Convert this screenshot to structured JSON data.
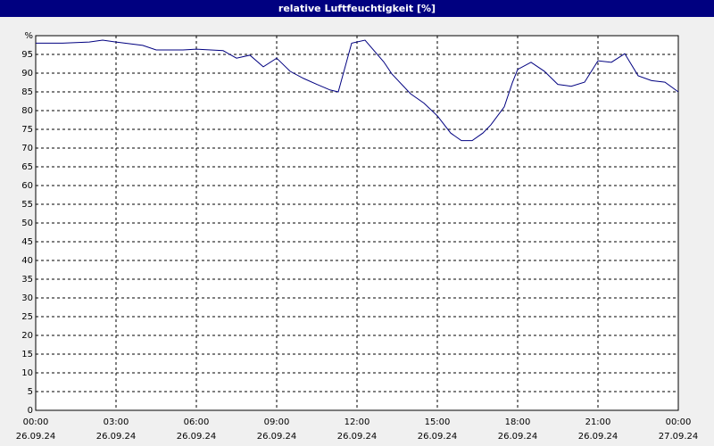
{
  "chart_data": {
    "type": "line",
    "title": "relative Luftfeuchtigkeit [%]",
    "x": [
      0,
      1,
      2,
      2.5,
      3,
      4,
      4.5,
      5,
      5.5,
      6,
      7,
      7.5,
      8,
      8.5,
      9,
      9.5,
      10,
      10.5,
      11,
      11.3,
      11.8,
      12.3,
      13,
      13.3,
      14,
      14.5,
      15,
      15.5,
      15.9,
      16.3,
      16.7,
      17,
      17.5,
      17.8,
      18,
      18.5,
      19,
      19.5,
      20,
      20.5,
      21,
      21.5,
      22,
      22.5,
      23,
      23.5,
      24
    ],
    "series": [
      {
        "name": "relative Luftfeuchtigkeit",
        "color": "#000080",
        "values": [
          98,
          98,
          98.3,
          98.8,
          98.3,
          97.4,
          96.2,
          96.2,
          96.2,
          96.4,
          96,
          94,
          94.8,
          91.7,
          94,
          90.5,
          88.6,
          87,
          85.5,
          85,
          98,
          98.8,
          93,
          89.8,
          84.5,
          82,
          78.6,
          74,
          72,
          72,
          74,
          76.2,
          81,
          87.4,
          91,
          92.9,
          90.5,
          87,
          86.5,
          87.6,
          93.3,
          92.9,
          95.2,
          89.3,
          88,
          87.6,
          85
        ]
      }
    ],
    "xlim": [
      0,
      24
    ],
    "xticks": [
      {
        "value": 0,
        "label": "00:00"
      },
      {
        "value": 3,
        "label": "03:00"
      },
      {
        "value": 6,
        "label": "06:00"
      },
      {
        "value": 9,
        "label": "09:00"
      },
      {
        "value": 12,
        "label": "12:00"
      },
      {
        "value": 15,
        "label": "15:00"
      },
      {
        "value": 18,
        "label": "18:00"
      },
      {
        "value": 21,
        "label": "21:00"
      },
      {
        "value": 24,
        "label": "00:00"
      }
    ],
    "xtick_dates": [
      "26.09.24",
      "26.09.24",
      "26.09.24",
      "26.09.24",
      "26.09.24",
      "26.09.24",
      "26.09.24",
      "26.09.24",
      "27.09.24"
    ],
    "ylim": [
      0,
      100
    ],
    "yticks": [
      0,
      5,
      10,
      15,
      20,
      25,
      30,
      35,
      40,
      45,
      50,
      55,
      60,
      65,
      70,
      75,
      80,
      85,
      90,
      95,
      {
        "value": 100,
        "label": "%"
      }
    ],
    "grid": true
  }
}
